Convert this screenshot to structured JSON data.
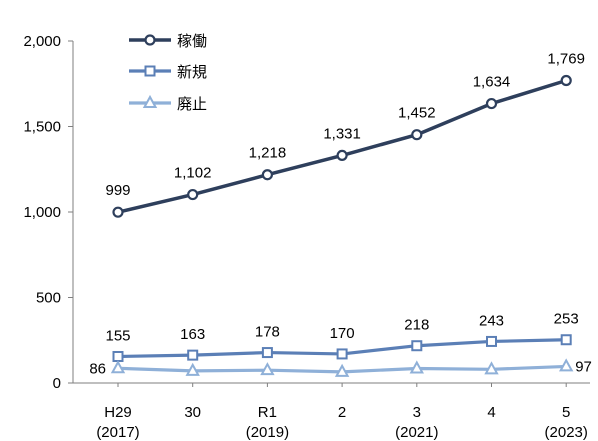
{
  "chart_data": {
    "type": "line",
    "categories": [
      [
        "H29",
        "(2017)"
      ],
      [
        "30",
        ""
      ],
      [
        "R1",
        "(2019)"
      ],
      [
        "2",
        ""
      ],
      [
        "3",
        "(2021)"
      ],
      [
        "4",
        ""
      ],
      [
        "5",
        "(2023)"
      ]
    ],
    "ylim": [
      0,
      2000
    ],
    "yticks": [
      0,
      500,
      1000,
      1500,
      2000
    ],
    "ytick_labels": [
      "0",
      "500",
      "1,000",
      "1,500",
      "2,000"
    ],
    "grid": false,
    "legend_position": "top-left",
    "series": [
      {
        "name": "稼働",
        "marker": "circle",
        "color": "#2e3f5c",
        "values": [
          999,
          1102,
          1218,
          1331,
          1452,
          1634,
          1769
        ],
        "labels": [
          "999",
          "1,102",
          "1,218",
          "1,331",
          "1,452",
          "1,634",
          "1,769"
        ]
      },
      {
        "name": "新規",
        "marker": "square",
        "color": "#5b7fb6",
        "values": [
          155,
          163,
          178,
          170,
          218,
          243,
          253
        ],
        "labels": [
          "155",
          "163",
          "178",
          "170",
          "218",
          "243",
          "253"
        ]
      },
      {
        "name": "廃止",
        "marker": "triangle",
        "color": "#8fb0d8",
        "values": [
          86,
          71,
          75,
          65,
          85,
          80,
          97
        ],
        "labels": [
          "86",
          "",
          "",
          "",
          "",
          "",
          "97"
        ]
      }
    ]
  }
}
